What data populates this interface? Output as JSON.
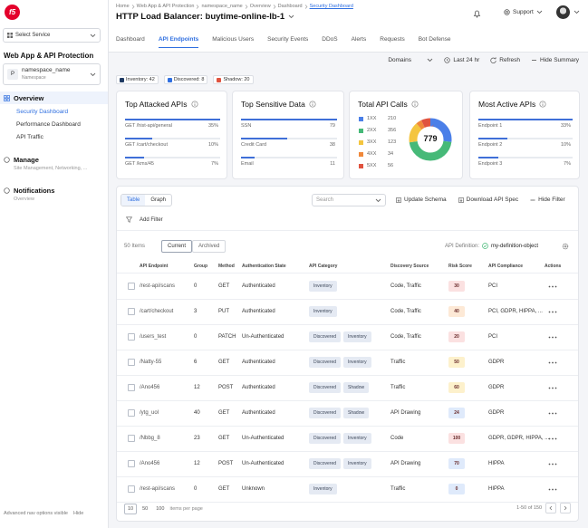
{
  "sidebar": {
    "logo": "f5",
    "service": "Select Service",
    "app": "Web App & API Protection",
    "namespace": {
      "icon": "P",
      "name": "namespace_name",
      "label": "Namespace"
    },
    "overview": {
      "title": "Overview",
      "items": [
        "Security Dashboard",
        "Performance Dashboard",
        "API Traffic"
      ],
      "active": 0
    },
    "sections": [
      {
        "title": "Manage",
        "subtitle": "Site Management, Networking, ..."
      },
      {
        "title": "Notifications",
        "subtitle": "Overview"
      }
    ],
    "footer": {
      "text": "Advanced nav options visible",
      "action": "Hide"
    }
  },
  "header": {
    "breadcrumb": [
      "Home",
      "Web App & API Protection",
      "namespace_name",
      "Overview",
      "Dashboard",
      "Security Dashboard"
    ],
    "title": "HTTP Load Balancer: buytime-online-lb-1",
    "support": "Support"
  },
  "tabs": {
    "items": [
      "Dashboard",
      "API Endpoints",
      "Malicious Users",
      "Security Events",
      "DDoS",
      "Alerts",
      "Requests",
      "Bot Defense"
    ],
    "active": 1
  },
  "toolbar": [
    "Domains",
    "Last 24 hr",
    "Refresh",
    "Hide Summary"
  ],
  "chips": [
    {
      "label": "Inventory: 42",
      "color": "#1f3a63"
    },
    {
      "label": "Discovered: 8",
      "color": "#2f6fe0"
    },
    {
      "label": "Shadow: 20",
      "color": "#e0533f"
    }
  ],
  "cards": [
    {
      "title": "Top Attacked APIs",
      "rows": [
        {
          "label": "GET /hist-api/general",
          "value": 35,
          "value_label": "35%"
        },
        {
          "label": "GET /cart/checkout",
          "value": 10,
          "value_label": "10%"
        },
        {
          "label": "GET /kms/45",
          "value": 7,
          "value_label": "7%"
        }
      ]
    },
    {
      "title": "Top Sensitive Data",
      "rows": [
        {
          "label": "SSN",
          "value": 79
        },
        {
          "label": "Credit Card",
          "value": 38
        },
        {
          "label": "Email",
          "value": 11
        }
      ]
    },
    {
      "title": "Total API Calls",
      "total": 779,
      "segments": [
        {
          "label": "1XX",
          "value": 210,
          "color": "#4a7fe8"
        },
        {
          "label": "2XX",
          "value": 356,
          "color": "#46b978"
        },
        {
          "label": "3XX",
          "value": 123,
          "color": "#f4c53f"
        },
        {
          "label": "4XX",
          "value": 34,
          "color": "#f0883a"
        },
        {
          "label": "5XX",
          "value": 56,
          "color": "#e0533f"
        }
      ]
    },
    {
      "title": "Most Active APIs",
      "rows": [
        {
          "label": "Endpoint 1",
          "value": 33,
          "value_label": "33%"
        },
        {
          "label": "Endpoint 2",
          "value": 10,
          "value_label": "10%"
        },
        {
          "label": "Endpoint 3",
          "value": 7,
          "value_label": "7%"
        }
      ]
    }
  ],
  "table_panel": {
    "views": [
      "Table",
      "Graph"
    ],
    "search": "Search",
    "actions": [
      "Update Schema",
      "Download API Spec",
      "Hide Filter"
    ],
    "add_filter": "Add Filter",
    "count": "50 Items",
    "scopes": [
      "Current",
      "Archived"
    ],
    "definition_label": "API Definition:",
    "definition": "my-definition-object",
    "columns": [
      "API Endpoint",
      "Group",
      "Method",
      "Authentication State",
      "API Category",
      "Discovery Source",
      "Risk Score",
      "API Compliance",
      "Actions"
    ],
    "rows": [
      {
        "endpoint": "/rest-api/scans",
        "group": 0,
        "method": "GET",
        "auth": "Authenticated",
        "category": [
          "Inventory"
        ],
        "source": "Code, Traffic",
        "risk": 30,
        "risk_color": "#fbe1e1",
        "compliance": "PCI"
      },
      {
        "endpoint": "/cart/checkout",
        "group": 3,
        "method": "PUT",
        "auth": "Authenticated",
        "category": [
          "Inventory"
        ],
        "source": "Code, Traffic",
        "risk": 40,
        "risk_color": "#fde9d6",
        "compliance": "PCI, GDPR, HIPPA, ..."
      },
      {
        "endpoint": "/users_test",
        "group": 0,
        "method": "PATCH",
        "auth": "Un-Authenticated",
        "category": [
          "Discovered",
          "Inventory"
        ],
        "source": "Code, Traffic",
        "risk": 20,
        "risk_color": "#fbe1e1",
        "compliance": "PCI"
      },
      {
        "endpoint": "/Natty-55",
        "group": 6,
        "method": "GET",
        "auth": "Authenticated",
        "category": [
          "Discovered",
          "Inventory"
        ],
        "source": "Traffic",
        "risk": 50,
        "risk_color": "#fdf1cc",
        "compliance": "GDPR"
      },
      {
        "endpoint": "/Ano456",
        "group": 12,
        "method": "POST",
        "auth": "Authenticated",
        "category": [
          "Discovered",
          "Shadow"
        ],
        "source": "Traffic",
        "risk": 60,
        "risk_color": "#fdf1cc",
        "compliance": "GDPR"
      },
      {
        "endpoint": "/ytg_uol",
        "group": 40,
        "method": "GET",
        "auth": "Authenticated",
        "category": [
          "Discovered",
          "Shadow"
        ],
        "source": "API Drawing",
        "risk": 24,
        "risk_color": "#dfeafb",
        "compliance": "GDPR"
      },
      {
        "endpoint": "/Nbbg_8",
        "group": 23,
        "method": "GET",
        "auth": "Un-Authenticated",
        "category": [
          "Discovered",
          "Inventory"
        ],
        "source": "Code",
        "risk": 100,
        "risk_color": "#fbe1e1",
        "compliance": "GDPR, GDPR, HIPPA, ..."
      },
      {
        "endpoint": "/Ano456",
        "group": 12,
        "method": "POST",
        "auth": "Un-Authenticated",
        "category": [
          "Discovered",
          "Inventory"
        ],
        "source": "API Drawing",
        "risk": 70,
        "risk_color": "#dfeafb",
        "compliance": "HIPPA"
      },
      {
        "endpoint": "/rest-api/scans",
        "group": 0,
        "method": "GET",
        "auth": "Unknown",
        "category": [
          "Inventory"
        ],
        "source": "Traffic",
        "risk": 0,
        "risk_color": "#dfeafb",
        "compliance": "HIPPA"
      }
    ],
    "page_sizes": [
      10,
      50,
      100
    ],
    "page_size_label": "items per page",
    "range": "1-50 of 150"
  }
}
